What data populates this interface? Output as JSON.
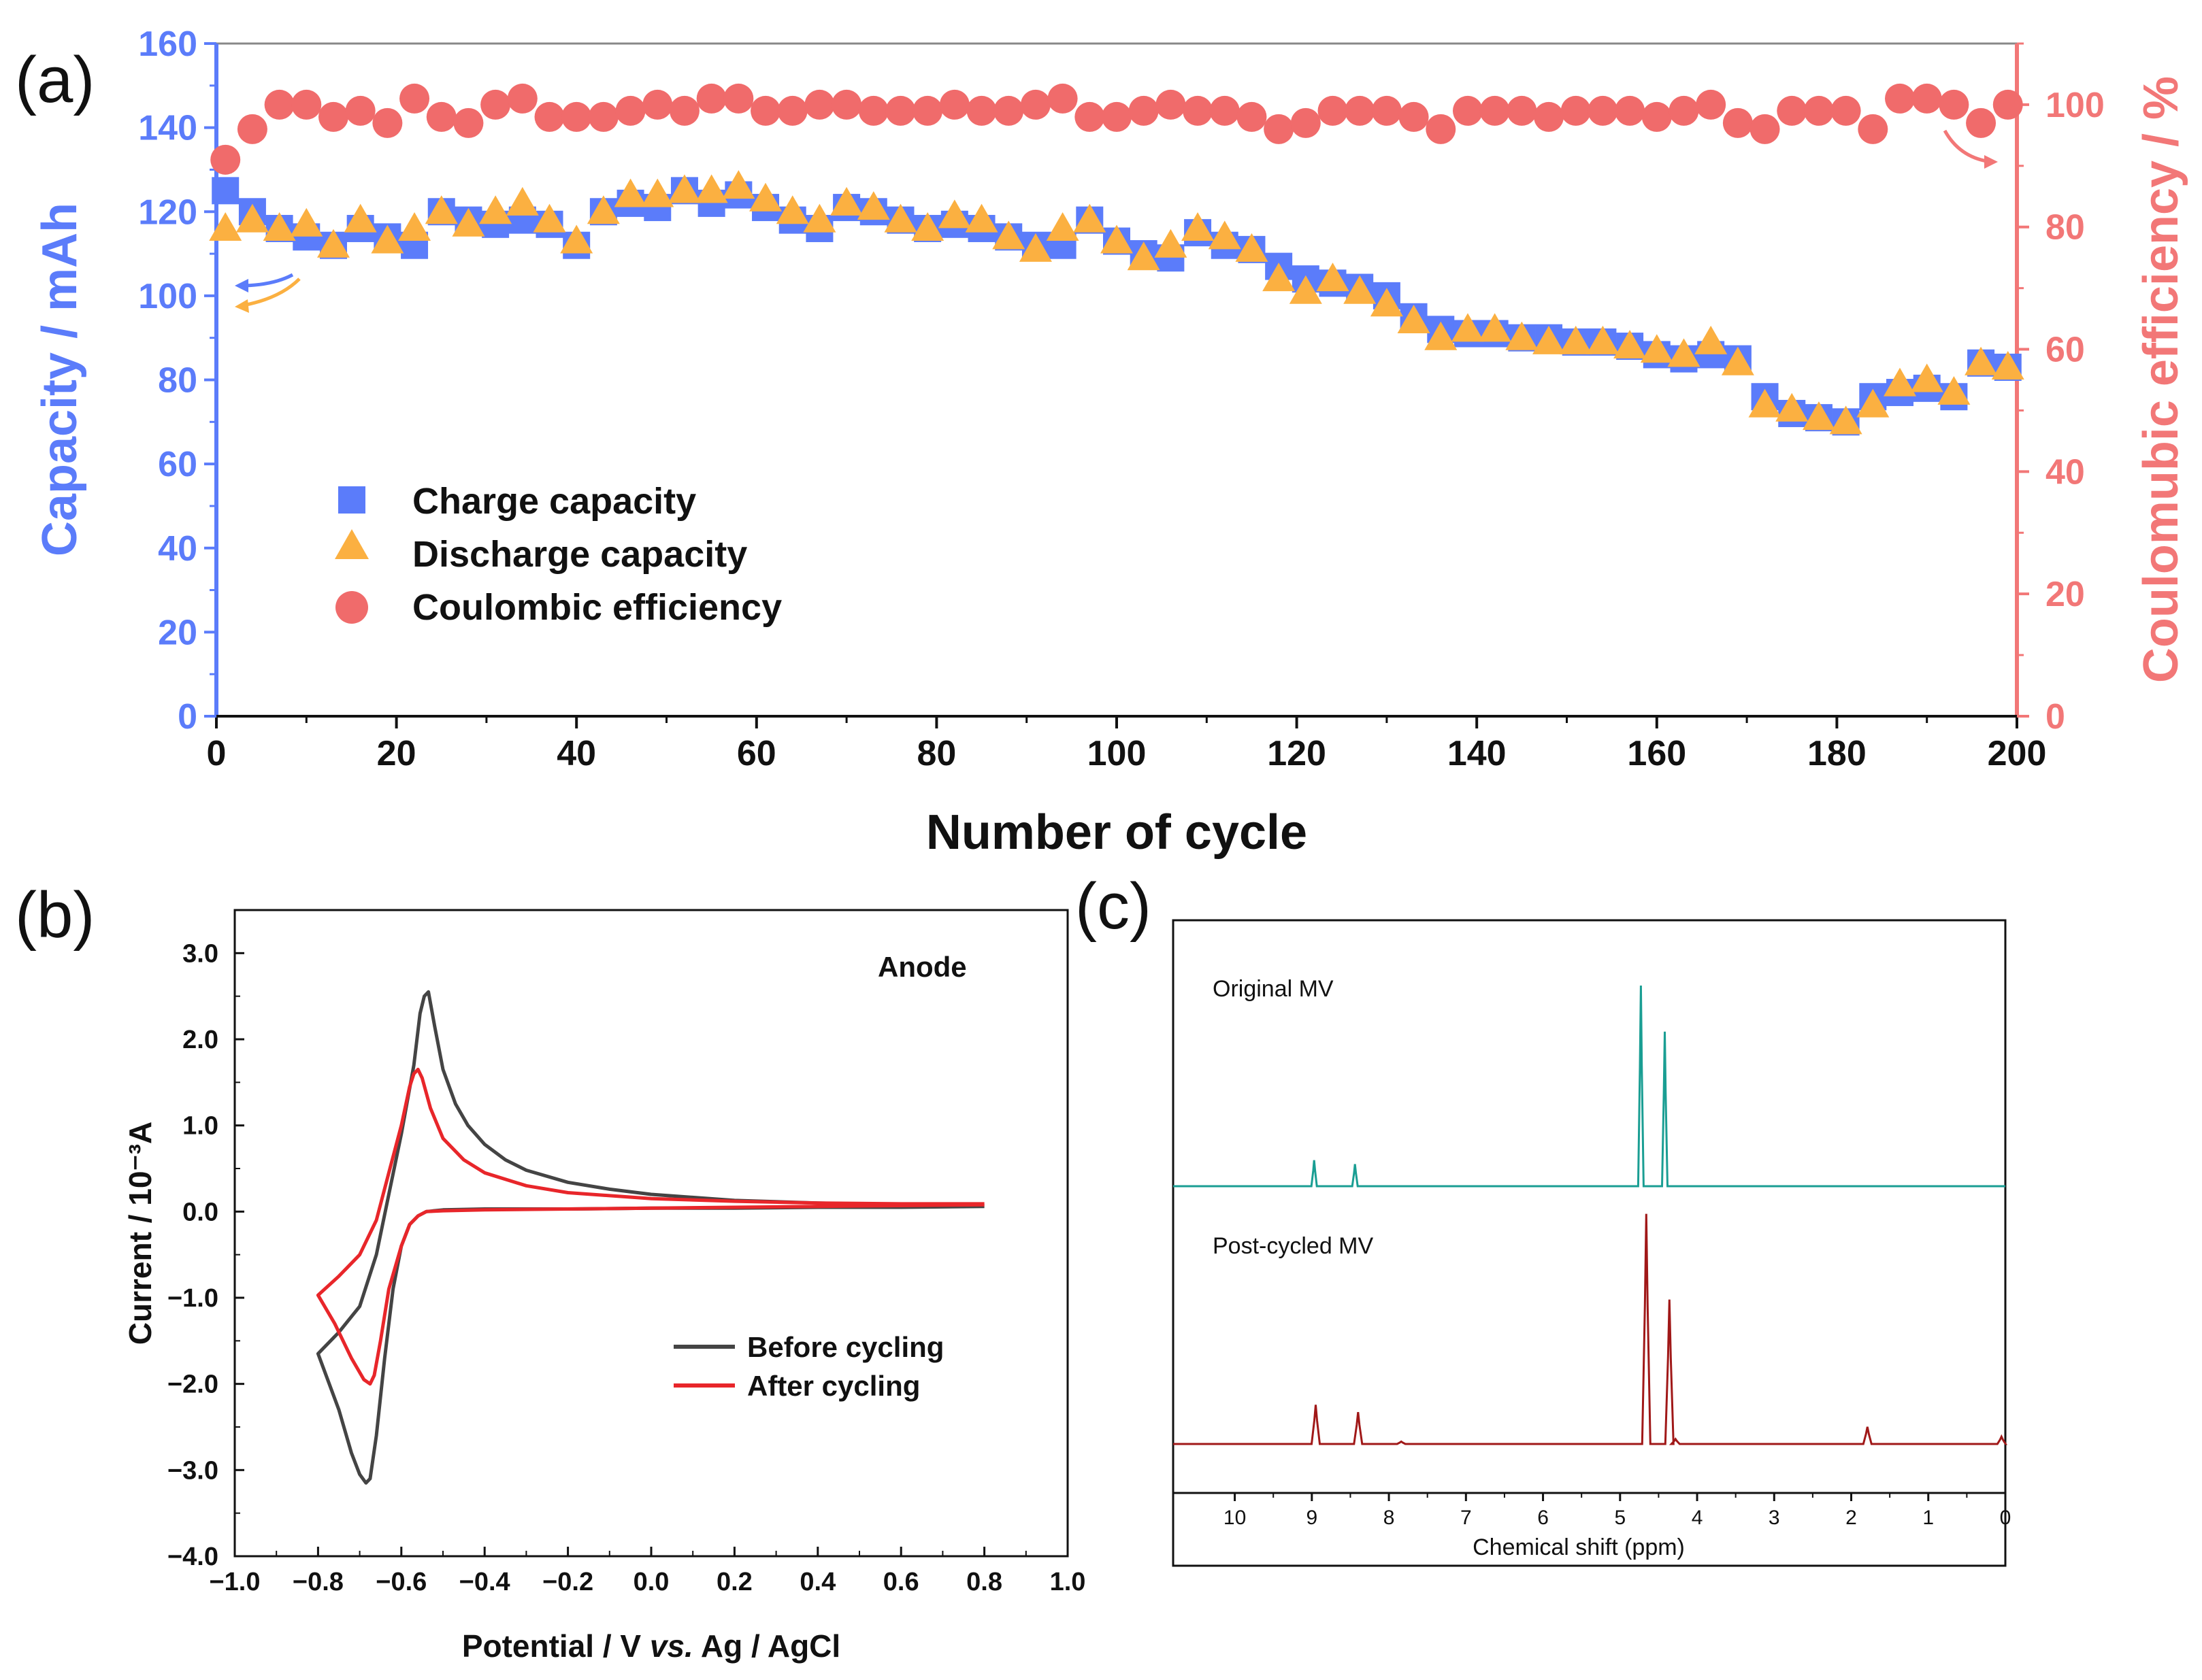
{
  "chart_data": [
    {
      "panel": "(a)",
      "type": "scatter",
      "xlabel": "Number of cycle",
      "ylabel_left": "Capacity / mAh",
      "ylabel_right": "Coulomubic efficiency / %",
      "xlim": [
        0,
        200
      ],
      "ylim_left": [
        0,
        160
      ],
      "ylim_right": [
        0,
        110
      ],
      "xticks": [
        "0",
        "20",
        "40",
        "60",
        "80",
        "100",
        "120",
        "140",
        "160",
        "180",
        "200"
      ],
      "yticks_left": [
        "0",
        "20",
        "40",
        "60",
        "80",
        "100",
        "120",
        "140",
        "160"
      ],
      "yticks_right": [
        "0",
        "20",
        "40",
        "60",
        "80",
        "100"
      ],
      "colors": {
        "charge": "#5b7cfa",
        "discharge": "#fbb041",
        "efficiency": "#f06b6b"
      },
      "legend": [
        "Charge capacity",
        "Discharge capacity",
        "Coulombic efficiency"
      ],
      "series": [
        {
          "name": "Charge capacity",
          "marker": "square",
          "axis": "left",
          "x": [
            1,
            4,
            7,
            10,
            13,
            16,
            19,
            22,
            25,
            28,
            31,
            34,
            37,
            40,
            43,
            46,
            49,
            52,
            55,
            58,
            61,
            64,
            67,
            70,
            73,
            76,
            79,
            82,
            85,
            88,
            91,
            94,
            97,
            100,
            103,
            106,
            109,
            112,
            115,
            118,
            121,
            124,
            127,
            130,
            133,
            136,
            139,
            142,
            145,
            148,
            151,
            154,
            157,
            160,
            163,
            166,
            169,
            172,
            175,
            178,
            181,
            184,
            187,
            190,
            193,
            196,
            199
          ],
          "y": [
            125,
            120,
            116,
            114,
            112,
            116,
            114,
            112,
            120,
            118,
            117,
            118,
            117,
            112,
            120,
            122,
            121,
            125,
            122,
            124,
            121,
            118,
            116,
            121,
            120,
            118,
            116,
            117,
            116,
            114,
            112,
            112,
            118,
            113,
            110,
            109,
            115,
            112,
            111,
            107,
            104,
            103,
            102,
            100,
            95,
            92,
            91,
            91,
            90,
            90,
            89,
            89,
            88,
            86,
            85,
            86,
            85,
            76,
            72,
            71,
            70,
            76,
            77,
            78,
            76,
            84,
            83
          ]
        },
        {
          "name": "Discharge capacity",
          "marker": "triangle",
          "axis": "left",
          "x": [
            1,
            4,
            7,
            10,
            13,
            16,
            19,
            22,
            25,
            28,
            31,
            34,
            37,
            40,
            43,
            46,
            49,
            52,
            55,
            58,
            61,
            64,
            67,
            70,
            73,
            76,
            79,
            82,
            85,
            88,
            91,
            94,
            97,
            100,
            103,
            106,
            109,
            112,
            115,
            118,
            121,
            124,
            127,
            130,
            133,
            136,
            139,
            142,
            145,
            148,
            151,
            154,
            157,
            160,
            163,
            166,
            169,
            172,
            175,
            178,
            181,
            184,
            187,
            190,
            193,
            196,
            199
          ],
          "y": [
            116,
            118,
            116,
            117,
            112,
            118,
            113,
            116,
            120,
            117,
            120,
            122,
            118,
            113,
            120,
            124,
            124,
            125,
            125,
            126,
            123,
            120,
            118,
            122,
            121,
            118,
            116,
            119,
            118,
            114,
            111,
            116,
            118,
            113,
            109,
            112,
            116,
            114,
            111,
            104,
            101,
            104,
            101,
            98,
            94,
            90,
            92,
            92,
            90,
            89,
            89,
            89,
            88,
            87,
            86,
            89,
            84,
            74,
            73,
            71,
            70,
            74,
            79,
            80,
            77,
            84,
            83
          ]
        },
        {
          "name": "Coulombic efficiency",
          "marker": "circle",
          "axis": "right",
          "x": [
            1,
            4,
            7,
            10,
            13,
            16,
            19,
            22,
            25,
            28,
            31,
            34,
            37,
            40,
            43,
            46,
            49,
            52,
            55,
            58,
            61,
            64,
            67,
            70,
            73,
            76,
            79,
            82,
            85,
            88,
            91,
            94,
            97,
            100,
            103,
            106,
            109,
            112,
            115,
            118,
            121,
            124,
            127,
            130,
            133,
            136,
            139,
            142,
            145,
            148,
            151,
            154,
            157,
            160,
            163,
            166,
            169,
            172,
            175,
            178,
            181,
            184,
            187,
            190,
            193,
            196,
            199
          ],
          "y": [
            91,
            96,
            100,
            100,
            98,
            99,
            97,
            101,
            98,
            97,
            100,
            101,
            98,
            98,
            98,
            99,
            100,
            99,
            101,
            101,
            99,
            99,
            100,
            100,
            99,
            99,
            99,
            100,
            99,
            99,
            100,
            101,
            98,
            98,
            99,
            100,
            99,
            99,
            98,
            96,
            97,
            99,
            99,
            99,
            98,
            96,
            99,
            99,
            99,
            98,
            99,
            99,
            99,
            98,
            99,
            100,
            97,
            96,
            99,
            99,
            99,
            96,
            101,
            101,
            100,
            97,
            100
          ]
        }
      ]
    },
    {
      "panel": "(b)",
      "type": "line",
      "annotation": "Anode",
      "xlabel": "Potential / V vs. Ag / AgCl",
      "xlabel_prefix": "Potential / V ",
      "xlabel_italic": "vs.",
      "xlabel_suffix": " Ag / AgCl",
      "ylabel": "Current / 10⁻³A",
      "xlim": [
        -1.0,
        1.0
      ],
      "ylim": [
        -4.0,
        3.5
      ],
      "xticks": [
        "−1.0",
        "−0.8",
        "−0.6",
        "−0.4",
        "−0.2",
        "0.0",
        "0.2",
        "0.4",
        "0.6",
        "0.8",
        "1.0"
      ],
      "yticks": [
        "−4.0",
        "−3.0",
        "−2.0",
        "−1.0",
        "0.0",
        "1.0",
        "2.0",
        "3.0"
      ],
      "colors": {
        "before": "#444444",
        "after": "#e8262a"
      },
      "series": [
        {
          "name": "Before cycling",
          "x": [
            0.8,
            0.6,
            0.4,
            0.2,
            0.0,
            -0.1,
            -0.2,
            -0.3,
            -0.35,
            -0.4,
            -0.44,
            -0.47,
            -0.5,
            -0.52,
            -0.535,
            -0.545,
            -0.555,
            -0.57,
            -0.6,
            -0.63,
            -0.66,
            -0.7,
            -0.75,
            -0.8,
            -0.75,
            -0.72,
            -0.7,
            -0.685,
            -0.675,
            -0.66,
            -0.64,
            -0.62,
            -0.6,
            -0.58,
            -0.56,
            -0.54,
            -0.5,
            -0.4,
            -0.2,
            0.0,
            0.2,
            0.4,
            0.6,
            0.8
          ],
          "y": [
            0.07,
            0.08,
            0.1,
            0.13,
            0.2,
            0.26,
            0.34,
            0.48,
            0.6,
            0.78,
            1.0,
            1.25,
            1.65,
            2.15,
            2.55,
            2.5,
            2.3,
            1.7,
            0.9,
            0.2,
            -0.5,
            -1.1,
            -1.4,
            -1.65,
            -2.3,
            -2.8,
            -3.05,
            -3.15,
            -3.1,
            -2.6,
            -1.7,
            -0.9,
            -0.4,
            -0.15,
            -0.05,
            0.0,
            0.02,
            0.03,
            0.03,
            0.04,
            0.04,
            0.05,
            0.05,
            0.06
          ]
        },
        {
          "name": "After cycling",
          "x": [
            0.8,
            0.6,
            0.4,
            0.2,
            0.0,
            -0.2,
            -0.3,
            -0.4,
            -0.45,
            -0.5,
            -0.53,
            -0.55,
            -0.56,
            -0.57,
            -0.58,
            -0.6,
            -0.63,
            -0.66,
            -0.7,
            -0.75,
            -0.8,
            -0.76,
            -0.72,
            -0.69,
            -0.675,
            -0.665,
            -0.65,
            -0.63,
            -0.6,
            -0.58,
            -0.56,
            -0.54,
            -0.5,
            -0.4,
            -0.2,
            0.0,
            0.2,
            0.4,
            0.6,
            0.8
          ],
          "y": [
            0.09,
            0.09,
            0.1,
            0.12,
            0.15,
            0.22,
            0.3,
            0.45,
            0.6,
            0.85,
            1.2,
            1.55,
            1.65,
            1.6,
            1.45,
            1.0,
            0.45,
            -0.1,
            -0.5,
            -0.75,
            -0.97,
            -1.3,
            -1.7,
            -1.95,
            -2.0,
            -1.9,
            -1.5,
            -0.9,
            -0.4,
            -0.15,
            -0.05,
            0.0,
            0.01,
            0.02,
            0.03,
            0.04,
            0.05,
            0.06,
            0.07,
            0.08
          ]
        }
      ]
    },
    {
      "panel": "(c)",
      "type": "line",
      "xlabel": "Chemical shift (ppm)",
      "xlim": [
        10.8,
        0
      ],
      "xticks": [
        "10",
        "9",
        "8",
        "7",
        "6",
        "5",
        "4",
        "3",
        "2",
        "1",
        "0"
      ],
      "colors": {
        "original": "#1a9e93",
        "post": "#a01818"
      },
      "series": [
        {
          "name": "Original MV",
          "peaks": [
            {
              "ppm": 8.97,
              "height": 0.13
            },
            {
              "ppm": 8.44,
              "height": 0.11
            },
            {
              "ppm": 4.73,
              "height": 1.0
            },
            {
              "ppm": 4.42,
              "height": 0.77
            }
          ]
        },
        {
          "name": "Post-cycled MV",
          "peaks": [
            {
              "ppm": 8.95,
              "height": 0.16
            },
            {
              "ppm": 8.4,
              "height": 0.13
            },
            {
              "ppm": 7.84,
              "height": 0.01
            },
            {
              "ppm": 4.66,
              "height": 0.94
            },
            {
              "ppm": 4.36,
              "height": 0.59
            },
            {
              "ppm": 4.28,
              "height": 0.02
            },
            {
              "ppm": 1.79,
              "height": 0.07
            },
            {
              "ppm": 0.05,
              "height": 0.03
            }
          ]
        }
      ]
    }
  ]
}
